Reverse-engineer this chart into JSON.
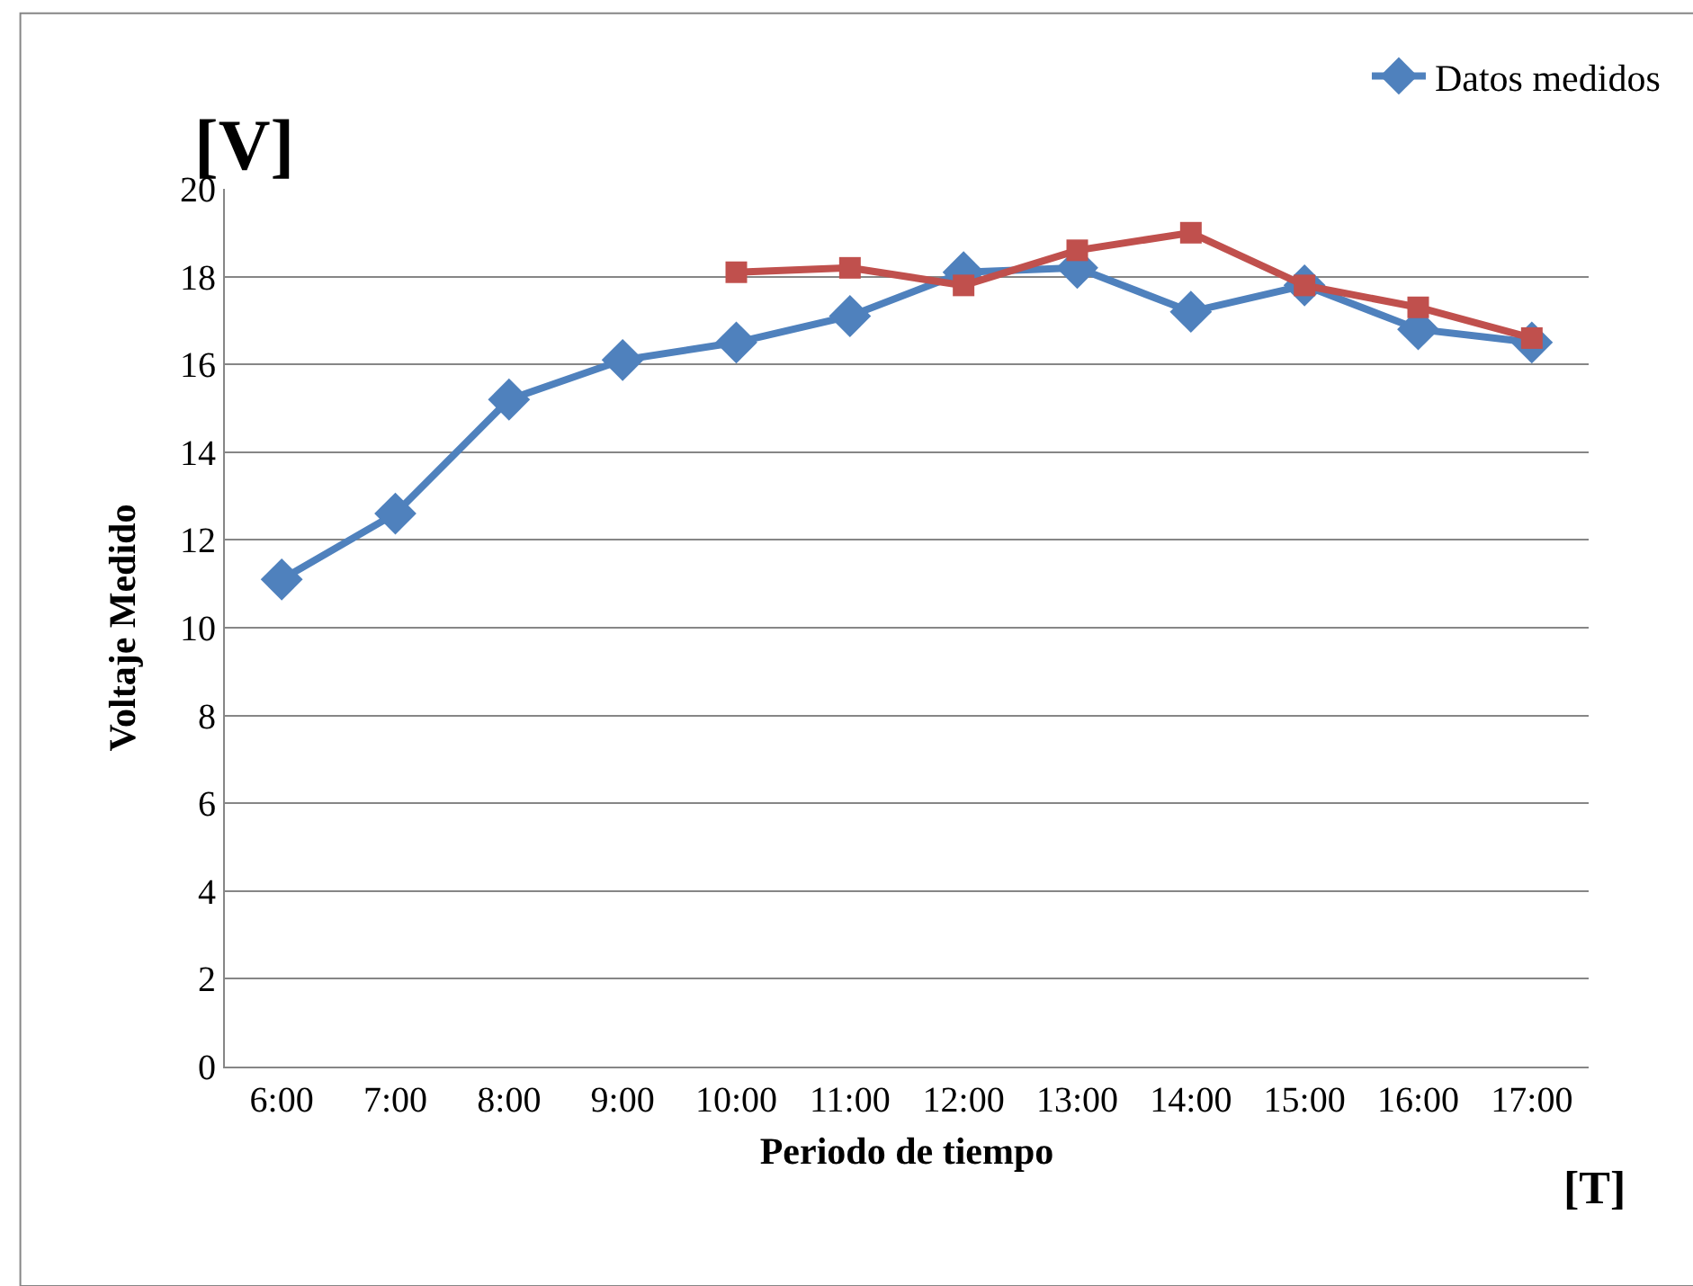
{
  "chart_data": {
    "type": "line",
    "xlabel": "Periodo de tiempo",
    "ylabel": "Voltaje Medido",
    "annotations": [
      "[V]",
      "[T]"
    ],
    "categories": [
      "6:00",
      "7:00",
      "8:00",
      "9:00",
      "10:00",
      "11:00",
      "12:00",
      "13:00",
      "14:00",
      "15:00",
      "16:00",
      "17:00"
    ],
    "series": [
      {
        "name": "Datos medidos",
        "color": "#4f81bd",
        "marker": "diamond",
        "values": [
          11.1,
          12.6,
          15.2,
          16.1,
          16.5,
          17.1,
          18.1,
          18.2,
          17.2,
          17.8,
          16.8,
          16.5
        ]
      },
      {
        "color": "#c0504d",
        "marker": "square",
        "values": [
          null,
          null,
          null,
          null,
          18.1,
          18.2,
          17.8,
          18.6,
          19.0,
          17.8,
          17.3,
          16.6
        ]
      }
    ],
    "ylim": [
      0,
      20
    ],
    "yticks": [
      0,
      2,
      4,
      6,
      8,
      10,
      12,
      14,
      16,
      18,
      20
    ],
    "grid": "y",
    "legend": "top right",
    "line_style": "solid"
  }
}
